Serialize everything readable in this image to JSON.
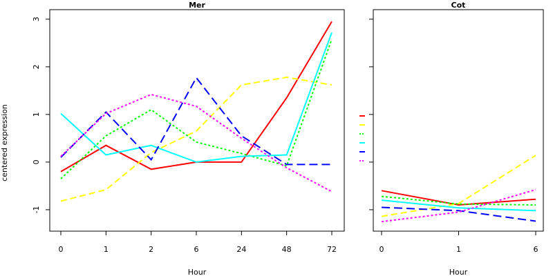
{
  "figure": {
    "ylabel": "centered expression",
    "xlabel_left": "Hour",
    "xlabel_right": "Hour"
  },
  "chart_data": [
    {
      "type": "line",
      "title": "Mer",
      "xlabel": "Hour",
      "ylabel": "centered expression",
      "categories": [
        "0",
        "1",
        "2",
        "6",
        "24",
        "48",
        "72"
      ],
      "ylim": [
        -1.45,
        3.2
      ],
      "yticks": [
        -1,
        0,
        1,
        2,
        3
      ],
      "grid": false,
      "series": [
        {
          "color": "#ff0000",
          "dash": "solid",
          "values": [
            -0.2,
            0.35,
            -0.15,
            0.0,
            0.0,
            1.35,
            2.95
          ]
        },
        {
          "color": "#ffff00",
          "dash": "dashed",
          "values": [
            -0.82,
            -0.58,
            0.2,
            0.65,
            1.62,
            1.78,
            1.62
          ]
        },
        {
          "color": "#00ff00",
          "dash": "dotted",
          "values": [
            -0.35,
            0.55,
            1.1,
            0.42,
            0.18,
            -0.08,
            2.58
          ]
        },
        {
          "color": "#00ffff",
          "dash": "solid",
          "values": [
            1.02,
            0.15,
            0.35,
            0.0,
            0.12,
            0.15,
            2.72
          ]
        },
        {
          "color": "#0000ff",
          "dash": "longdash",
          "values": [
            0.1,
            1.05,
            0.05,
            1.77,
            0.55,
            -0.05,
            -0.05
          ]
        },
        {
          "color": "#ff00ff",
          "dash": "dotted",
          "values": [
            0.12,
            1.02,
            1.42,
            1.17,
            0.5,
            -0.12,
            -0.62
          ]
        }
      ]
    },
    {
      "type": "line",
      "title": "Cot",
      "xlabel": "Hour",
      "categories": [
        "0",
        "1",
        "6"
      ],
      "ylim": [
        -1.45,
        3.2
      ],
      "yticks": [
        -1,
        0,
        1,
        2,
        3
      ],
      "grid": false,
      "series": [
        {
          "color": "#ff0000",
          "dash": "solid",
          "values": [
            -0.6,
            -0.9,
            -0.78
          ]
        },
        {
          "color": "#ffff00",
          "dash": "dashed",
          "values": [
            -1.14,
            -0.87,
            0.14
          ]
        },
        {
          "color": "#00ff00",
          "dash": "dotted",
          "values": [
            -0.72,
            -0.88,
            -0.9
          ]
        },
        {
          "color": "#00ffff",
          "dash": "solid",
          "values": [
            -0.8,
            -0.96,
            -1.02
          ]
        },
        {
          "color": "#0000ff",
          "dash": "longdash",
          "values": [
            -0.95,
            -1.02,
            -1.24
          ]
        },
        {
          "color": "#ff00ff",
          "dash": "dotted",
          "values": [
            -1.25,
            -1.05,
            -0.58
          ]
        }
      ]
    }
  ]
}
